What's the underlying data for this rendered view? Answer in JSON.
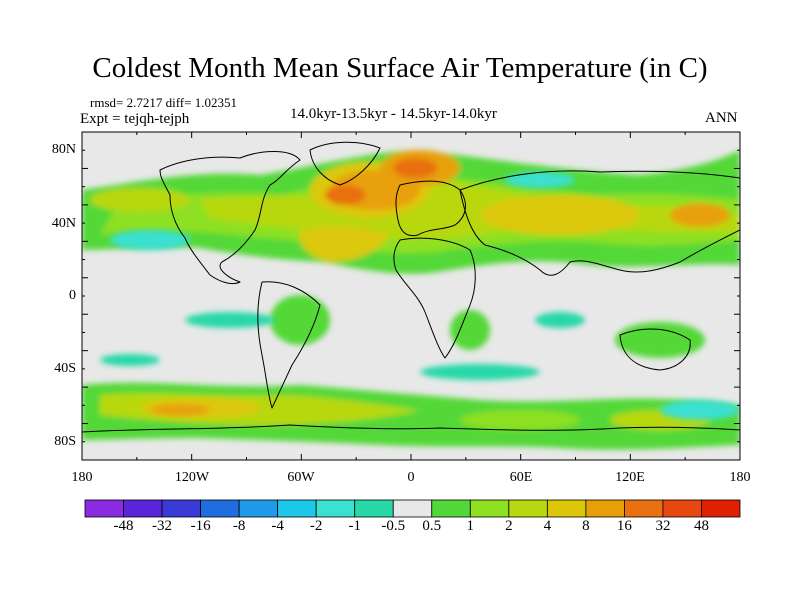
{
  "title": "Coldest Month Mean Surface Air Temperature (in C)",
  "stats": "rmsd= 2.7217 diff= 1.02351",
  "experiment": "Expt = tejqh-tejph",
  "period": "14.0kyr-13.5kyr - 14.5kyr-14.0kyr",
  "season": "ANN",
  "map": {
    "lat_ticks": [
      "80N",
      "40N",
      "0",
      "40S",
      "80S"
    ],
    "lon_ticks": [
      "180",
      "120W",
      "60W",
      "0",
      "60E",
      "120E",
      "180"
    ]
  },
  "colorbar": {
    "labels": [
      "-48",
      "-32",
      "-16",
      "-8",
      "-4",
      "-2",
      "-1",
      "-0.5",
      "0.5",
      "1",
      "2",
      "4",
      "8",
      "16",
      "32",
      "48"
    ],
    "colors": [
      "#8a2be2",
      "#5a24d8",
      "#3a3ad6",
      "#1e6ee0",
      "#1e9ae8",
      "#1ec8e8",
      "#3ae0d0",
      "#28d8a8",
      "#e8e8e8",
      "#52d838",
      "#8ee020",
      "#b8d810",
      "#dcc808",
      "#e8a008",
      "#e87010",
      "#e84810",
      "#e02000"
    ]
  }
}
